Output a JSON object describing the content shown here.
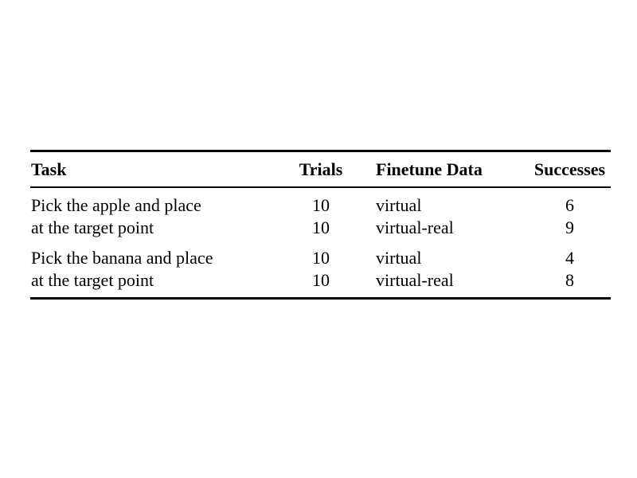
{
  "table": {
    "headers": {
      "task": "Task",
      "trials": "Trials",
      "finetune_data": "Finetune Data",
      "successes": "Successes"
    },
    "groups": [
      {
        "task_lines": [
          "Pick the apple and place",
          "at the target point"
        ],
        "rows": [
          {
            "trials": "10",
            "finetune_data": "virtual",
            "successes": "6"
          },
          {
            "trials": "10",
            "finetune_data": "virtual-real",
            "successes": "9"
          }
        ]
      },
      {
        "task_lines": [
          "Pick the banana and place",
          "at the target point"
        ],
        "rows": [
          {
            "trials": "10",
            "finetune_data": "virtual",
            "successes": "4"
          },
          {
            "trials": "10",
            "finetune_data": "virtual-real",
            "successes": "8"
          }
        ]
      }
    ]
  }
}
